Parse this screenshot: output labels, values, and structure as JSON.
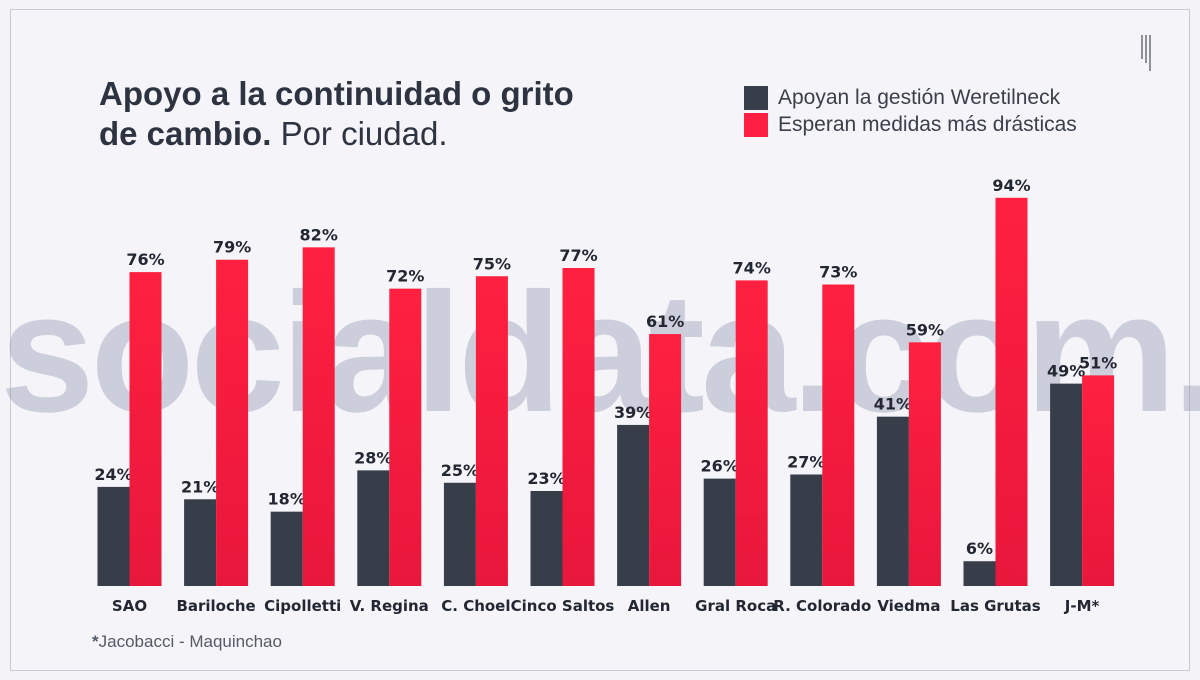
{
  "title": {
    "bold": "Apoyo a la continuidad o grito de cambio.",
    "regular": "Por ciudad."
  },
  "legend": [
    {
      "label": "Apoyan la gestión Weretilneck",
      "color": "#383d4a"
    },
    {
      "label": "Esperan medidas más drásticas",
      "color": "#ff1f42"
    }
  ],
  "watermark": "socialdata.com.ar",
  "footnote": {
    "marker": "*",
    "text": "Jacobacci - Maquinchao"
  },
  "chart_data": {
    "type": "bar",
    "title": "Apoyo a la continuidad o grito de cambio. Por ciudad.",
    "categories": [
      "SAO",
      "Bariloche",
      "Cipolletti",
      "V. Regina",
      "C. Choel",
      "Cinco Saltos",
      "Allen",
      "Gral Roca",
      "R. Colorado",
      "Viedma",
      "Las Grutas",
      "J-M*"
    ],
    "series": [
      {
        "name": "Apoyan la gestión Weretilneck",
        "values": [
          24,
          21,
          18,
          28,
          25,
          23,
          39,
          26,
          27,
          41,
          6,
          49
        ],
        "color": "#383d4a"
      },
      {
        "name": "Esperan medidas más drásticas",
        "values": [
          76,
          79,
          82,
          72,
          75,
          77,
          61,
          74,
          73,
          59,
          94,
          51
        ],
        "color": "#ff1f42"
      }
    ],
    "value_suffix": "%",
    "ylim": [
      0,
      100
    ],
    "grid": false,
    "legend_position": "top-right"
  }
}
